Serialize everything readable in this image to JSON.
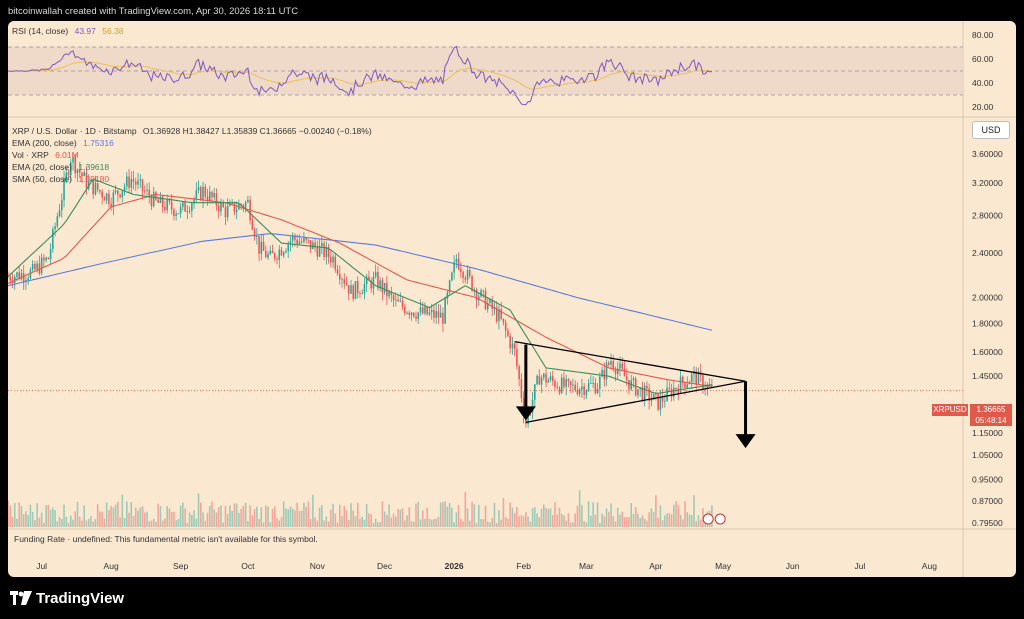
{
  "header": {
    "text": "bitcoinwallah created with TradingView.com, Apr 30, 2026 18:11 UTC"
  },
  "rsi": {
    "label": "RSI (14, close)",
    "value": "43.97",
    "value2": "56.38",
    "ticks": [
      "80.00",
      "60.00",
      "40.00",
      "20.00"
    ]
  },
  "legend": {
    "symbol": "XRP / U.S. Dollar · 1D · Bitstamp",
    "ohlc": "O1.36928 H1.38427 L1.35839 C1.36665 −0.00240 (−0.18%)",
    "ema200": {
      "label": "EMA (200, close)",
      "value": "1.75316"
    },
    "vol": {
      "label": "Vol · XRP",
      "value": "6.01M"
    },
    "ema20": {
      "label": "EMA (20, close)",
      "value": "1.39618"
    },
    "sma50": {
      "label": "SMA (50, close)",
      "value": "1.39180"
    }
  },
  "currency": "USD",
  "price_tag": {
    "symbol": "XRPUSD",
    "price": "1.36665",
    "countdown": "05:48:14"
  },
  "funding": "Funding Rate · undefined: This fundamental metric isn't available for this symbol.",
  "footer": {
    "brand": "TradingView"
  },
  "colors": {
    "up": "#26a69a",
    "down": "#ef5350",
    "ema200": "#5b7bdc",
    "ema20": "#3d8b5a",
    "sma50": "#e05a4b",
    "rsi": "#7e57c2",
    "rsi_ma": "#e8c25a"
  },
  "chart_data": {
    "type": "candlestick",
    "title": "XRP / U.S. Dollar · 1D · Bitstamp",
    "x_ticks": [
      "Jul",
      "Aug",
      "Sep",
      "Oct",
      "Nov",
      "Dec",
      "2026",
      "Feb",
      "Mar",
      "Apr",
      "May",
      "Jun",
      "Jul",
      "Aug"
    ],
    "y_ticks": [
      "3.60000",
      "3.20000",
      "2.80000",
      "2.40000",
      "2.00000",
      "1.80000",
      "1.60000",
      "1.45000",
      "1.15000",
      "1.05000",
      "0.95000",
      "0.87000",
      "0.79500"
    ],
    "y_scale": "log",
    "price_path": [
      [
        "2025-06-20",
        2.18
      ],
      [
        "2025-07-01",
        2.22
      ],
      [
        "2025-07-08",
        2.35
      ],
      [
        "2025-07-12",
        2.8
      ],
      [
        "2025-07-18",
        3.55
      ],
      [
        "2025-07-25",
        3.2
      ],
      [
        "2025-08-05",
        3.0
      ],
      [
        "2025-08-14",
        3.25
      ],
      [
        "2025-08-25",
        2.95
      ],
      [
        "2025-09-05",
        2.85
      ],
      [
        "2025-09-15",
        3.1
      ],
      [
        "2025-09-25",
        2.85
      ],
      [
        "2025-10-05",
        2.95
      ],
      [
        "2025-10-10",
        2.45
      ],
      [
        "2025-10-15",
        2.35
      ],
      [
        "2025-10-25",
        2.55
      ],
      [
        "2025-11-05",
        2.45
      ],
      [
        "2025-11-12",
        2.35
      ],
      [
        "2025-11-20",
        2.05
      ],
      [
        "2025-12-01",
        2.15
      ],
      [
        "2025-12-10",
        1.95
      ],
      [
        "2025-12-20",
        1.88
      ],
      [
        "2025-12-31",
        1.85
      ],
      [
        "2026-01-06",
        2.35
      ],
      [
        "2026-01-15",
        2.05
      ],
      [
        "2026-01-25",
        1.85
      ],
      [
        "2026-02-01",
        1.6
      ],
      [
        "2026-02-06",
        1.2
      ],
      [
        "2026-02-12",
        1.45
      ],
      [
        "2026-02-25",
        1.38
      ],
      [
        "2026-03-10",
        1.4
      ],
      [
        "2026-03-16",
        1.55
      ],
      [
        "2026-03-25",
        1.4
      ],
      [
        "2026-04-06",
        1.3
      ],
      [
        "2026-04-15",
        1.4
      ],
      [
        "2026-04-22",
        1.45
      ],
      [
        "2026-04-30",
        1.37
      ]
    ],
    "ema200_path": [
      [
        "2025-06-20",
        2.1
      ],
      [
        "2025-08-01",
        2.3
      ],
      [
        "2025-09-15",
        2.52
      ],
      [
        "2025-10-15",
        2.6
      ],
      [
        "2025-12-01",
        2.48
      ],
      [
        "2026-01-15",
        2.25
      ],
      [
        "2026-03-01",
        2.0
      ],
      [
        "2026-04-30",
        1.75
      ]
    ],
    "sma50_path": [
      [
        "2025-06-20",
        2.12
      ],
      [
        "2025-07-15",
        2.35
      ],
      [
        "2025-08-05",
        2.9
      ],
      [
        "2025-08-25",
        3.05
      ],
      [
        "2025-09-25",
        2.95
      ],
      [
        "2025-10-20",
        2.75
      ],
      [
        "2025-11-15",
        2.5
      ],
      [
        "2025-12-15",
        2.15
      ],
      [
        "2026-01-15",
        2.0
      ],
      [
        "2026-02-15",
        1.7
      ],
      [
        "2026-03-15",
        1.5
      ],
      [
        "2026-04-10",
        1.43
      ],
      [
        "2026-04-30",
        1.39
      ]
    ],
    "ema20_path": [
      [
        "2025-06-20",
        2.18
      ],
      [
        "2025-07-15",
        2.7
      ],
      [
        "2025-07-28",
        3.25
      ],
      [
        "2025-08-15",
        3.05
      ],
      [
        "2025-09-10",
        2.95
      ],
      [
        "2025-10-01",
        2.95
      ],
      [
        "2025-10-20",
        2.5
      ],
      [
        "2025-11-10",
        2.45
      ],
      [
        "2025-12-01",
        2.1
      ],
      [
        "2025-12-25",
        1.92
      ],
      [
        "2026-01-10",
        2.1
      ],
      [
        "2026-01-30",
        1.9
      ],
      [
        "2026-02-15",
        1.5
      ],
      [
        "2026-03-15",
        1.45
      ],
      [
        "2026-04-05",
        1.35
      ],
      [
        "2026-04-30",
        1.4
      ]
    ],
    "triangle": {
      "upper": [
        [
          "2026-02-01",
          1.67
        ],
        [
          "2026-05-15",
          1.42
        ]
      ],
      "lower": [
        [
          "2026-02-06",
          1.2
        ],
        [
          "2026-05-15",
          1.42
        ]
      ]
    },
    "current_price": 1.36665
  }
}
